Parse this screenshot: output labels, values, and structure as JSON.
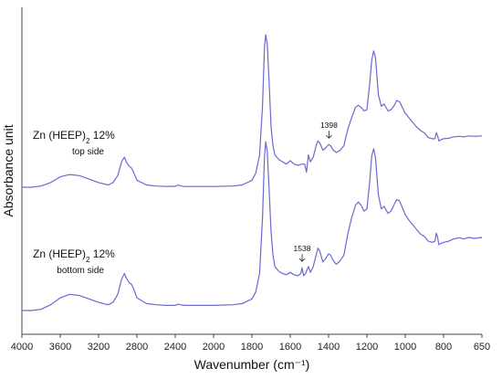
{
  "chart_data": {
    "type": "line",
    "xlabel": "Wavenumber (cm⁻¹)",
    "ylabel": "Absorbance unit",
    "xlim": [
      4000,
      650
    ],
    "x_reversed": true,
    "x_ticks": [
      4000,
      3600,
      3200,
      2800,
      2400,
      2000,
      1800,
      1600,
      1400,
      1200,
      1000,
      800,
      650
    ],
    "x_tick_labels": [
      "4000",
      "3600",
      "3200",
      "2800",
      "2400",
      "2000",
      "1800",
      "1600",
      "1400",
      "1200",
      "1000",
      "800",
      "650"
    ],
    "ylim": [
      0,
      1.35
    ],
    "y_ticks_shown": false,
    "grid": false,
    "line_color": "#6a6ad0",
    "series": [
      {
        "label_main": "Zn (HEEP)",
        "label_sub": "2",
        "label_pct": " 12%",
        "label_line2": "top side",
        "points": [
          [
            4000,
            0.6
          ],
          [
            3900,
            0.6
          ],
          [
            3800,
            0.605
          ],
          [
            3700,
            0.62
          ],
          [
            3600,
            0.645
          ],
          [
            3500,
            0.655
          ],
          [
            3400,
            0.65
          ],
          [
            3300,
            0.635
          ],
          [
            3200,
            0.62
          ],
          [
            3100,
            0.61
          ],
          [
            3050,
            0.62
          ],
          [
            3000,
            0.65
          ],
          [
            2960,
            0.71
          ],
          [
            2930,
            0.73
          ],
          [
            2910,
            0.71
          ],
          [
            2880,
            0.69
          ],
          [
            2860,
            0.685
          ],
          [
            2840,
            0.67
          ],
          [
            2800,
            0.63
          ],
          [
            2700,
            0.61
          ],
          [
            2600,
            0.605
          ],
          [
            2500,
            0.603
          ],
          [
            2400,
            0.604
          ],
          [
            2370,
            0.61
          ],
          [
            2340,
            0.605
          ],
          [
            2300,
            0.603
          ],
          [
            2200,
            0.603
          ],
          [
            2100,
            0.603
          ],
          [
            2000,
            0.603
          ],
          [
            1900,
            0.605
          ],
          [
            1850,
            0.61
          ],
          [
            1800,
            0.63
          ],
          [
            1780,
            0.66
          ],
          [
            1760,
            0.74
          ],
          [
            1745,
            0.95
          ],
          [
            1735,
            1.2
          ],
          [
            1728,
            1.26
          ],
          [
            1720,
            1.22
          ],
          [
            1710,
            1.05
          ],
          [
            1700,
            0.86
          ],
          [
            1690,
            0.78
          ],
          [
            1680,
            0.74
          ],
          [
            1660,
            0.72
          ],
          [
            1640,
            0.71
          ],
          [
            1620,
            0.7
          ],
          [
            1600,
            0.715
          ],
          [
            1580,
            0.7
          ],
          [
            1560,
            0.695
          ],
          [
            1540,
            0.7
          ],
          [
            1525,
            0.7
          ],
          [
            1515,
            0.665
          ],
          [
            1505,
            0.74
          ],
          [
            1495,
            0.71
          ],
          [
            1480,
            0.73
          ],
          [
            1465,
            0.78
          ],
          [
            1455,
            0.8
          ],
          [
            1445,
            0.79
          ],
          [
            1430,
            0.76
          ],
          [
            1415,
            0.77
          ],
          [
            1400,
            0.785
          ],
          [
            1390,
            0.78
          ],
          [
            1375,
            0.76
          ],
          [
            1360,
            0.75
          ],
          [
            1340,
            0.76
          ],
          [
            1320,
            0.78
          ],
          [
            1300,
            0.85
          ],
          [
            1280,
            0.9
          ],
          [
            1260,
            0.945
          ],
          [
            1245,
            0.955
          ],
          [
            1230,
            0.945
          ],
          [
            1215,
            0.93
          ],
          [
            1200,
            0.935
          ],
          [
            1185,
            1.05
          ],
          [
            1175,
            1.15
          ],
          [
            1165,
            1.19
          ],
          [
            1155,
            1.16
          ],
          [
            1140,
            1.0
          ],
          [
            1125,
            0.95
          ],
          [
            1110,
            0.96
          ],
          [
            1090,
            0.93
          ],
          [
            1075,
            0.935
          ],
          [
            1060,
            0.95
          ],
          [
            1045,
            0.975
          ],
          [
            1030,
            0.97
          ],
          [
            1015,
            0.945
          ],
          [
            1000,
            0.92
          ],
          [
            980,
            0.9
          ],
          [
            960,
            0.88
          ],
          [
            940,
            0.86
          ],
          [
            920,
            0.845
          ],
          [
            900,
            0.835
          ],
          [
            880,
            0.815
          ],
          [
            860,
            0.81
          ],
          [
            845,
            0.81
          ],
          [
            838,
            0.835
          ],
          [
            832,
            0.825
          ],
          [
            825,
            0.8
          ],
          [
            815,
            0.805
          ],
          [
            800,
            0.81
          ],
          [
            780,
            0.812
          ],
          [
            760,
            0.818
          ],
          [
            740,
            0.82
          ],
          [
            720,
            0.818
          ],
          [
            700,
            0.822
          ],
          [
            680,
            0.82
          ],
          [
            650,
            0.822
          ]
        ]
      },
      {
        "label_main": "Zn (HEEP)",
        "label_sub": "2",
        "label_pct": " 12%",
        "label_line2": "bottom side",
        "points": [
          [
            4000,
            0.0
          ],
          [
            3900,
            0.0
          ],
          [
            3800,
            0.005
          ],
          [
            3700,
            0.025
          ],
          [
            3600,
            0.055
          ],
          [
            3500,
            0.07
          ],
          [
            3400,
            0.065
          ],
          [
            3300,
            0.05
          ],
          [
            3200,
            0.035
          ],
          [
            3100,
            0.025
          ],
          [
            3050,
            0.035
          ],
          [
            3000,
            0.07
          ],
          [
            2960,
            0.135
          ],
          [
            2930,
            0.16
          ],
          [
            2910,
            0.14
          ],
          [
            2880,
            0.12
          ],
          [
            2860,
            0.115
          ],
          [
            2840,
            0.1
          ],
          [
            2800,
            0.055
          ],
          [
            2700,
            0.03
          ],
          [
            2600,
            0.025
          ],
          [
            2500,
            0.022
          ],
          [
            2400,
            0.022
          ],
          [
            2370,
            0.028
          ],
          [
            2340,
            0.024
          ],
          [
            2300,
            0.022
          ],
          [
            2200,
            0.022
          ],
          [
            2100,
            0.022
          ],
          [
            2000,
            0.022
          ],
          [
            1900,
            0.025
          ],
          [
            1850,
            0.03
          ],
          [
            1800,
            0.05
          ],
          [
            1780,
            0.08
          ],
          [
            1760,
            0.16
          ],
          [
            1745,
            0.4
          ],
          [
            1735,
            0.66
          ],
          [
            1728,
            0.73
          ],
          [
            1720,
            0.69
          ],
          [
            1710,
            0.52
          ],
          [
            1700,
            0.34
          ],
          [
            1690,
            0.24
          ],
          [
            1680,
            0.19
          ],
          [
            1660,
            0.17
          ],
          [
            1640,
            0.16
          ],
          [
            1620,
            0.155
          ],
          [
            1600,
            0.165
          ],
          [
            1580,
            0.155
          ],
          [
            1560,
            0.15
          ],
          [
            1545,
            0.16
          ],
          [
            1538,
            0.185
          ],
          [
            1530,
            0.15
          ],
          [
            1520,
            0.16
          ],
          [
            1505,
            0.19
          ],
          [
            1495,
            0.165
          ],
          [
            1480,
            0.19
          ],
          [
            1465,
            0.24
          ],
          [
            1455,
            0.27
          ],
          [
            1445,
            0.255
          ],
          [
            1430,
            0.21
          ],
          [
            1415,
            0.225
          ],
          [
            1400,
            0.245
          ],
          [
            1390,
            0.24
          ],
          [
            1375,
            0.215
          ],
          [
            1360,
            0.2
          ],
          [
            1340,
            0.215
          ],
          [
            1320,
            0.24
          ],
          [
            1300,
            0.33
          ],
          [
            1280,
            0.4
          ],
          [
            1260,
            0.455
          ],
          [
            1245,
            0.47
          ],
          [
            1230,
            0.455
          ],
          [
            1215,
            0.43
          ],
          [
            1200,
            0.44
          ],
          [
            1185,
            0.56
          ],
          [
            1175,
            0.67
          ],
          [
            1165,
            0.7
          ],
          [
            1155,
            0.66
          ],
          [
            1140,
            0.5
          ],
          [
            1125,
            0.44
          ],
          [
            1110,
            0.45
          ],
          [
            1090,
            0.42
          ],
          [
            1075,
            0.43
          ],
          [
            1060,
            0.455
          ],
          [
            1045,
            0.48
          ],
          [
            1030,
            0.475
          ],
          [
            1015,
            0.445
          ],
          [
            1000,
            0.415
          ],
          [
            980,
            0.39
          ],
          [
            960,
            0.37
          ],
          [
            940,
            0.35
          ],
          [
            920,
            0.33
          ],
          [
            900,
            0.32
          ],
          [
            880,
            0.3
          ],
          [
            860,
            0.295
          ],
          [
            845,
            0.3
          ],
          [
            838,
            0.335
          ],
          [
            832,
            0.32
          ],
          [
            825,
            0.285
          ],
          [
            815,
            0.29
          ],
          [
            800,
            0.295
          ],
          [
            780,
            0.3
          ],
          [
            760,
            0.31
          ],
          [
            740,
            0.315
          ],
          [
            720,
            0.31
          ],
          [
            700,
            0.316
          ],
          [
            680,
            0.312
          ],
          [
            650,
            0.316
          ]
        ]
      }
    ],
    "annotations": [
      {
        "text": "1398",
        "x": 1398,
        "series": 0,
        "y": 0.785
      },
      {
        "text": "1538",
        "x": 1538,
        "series": 1,
        "y": 0.185
      }
    ]
  }
}
